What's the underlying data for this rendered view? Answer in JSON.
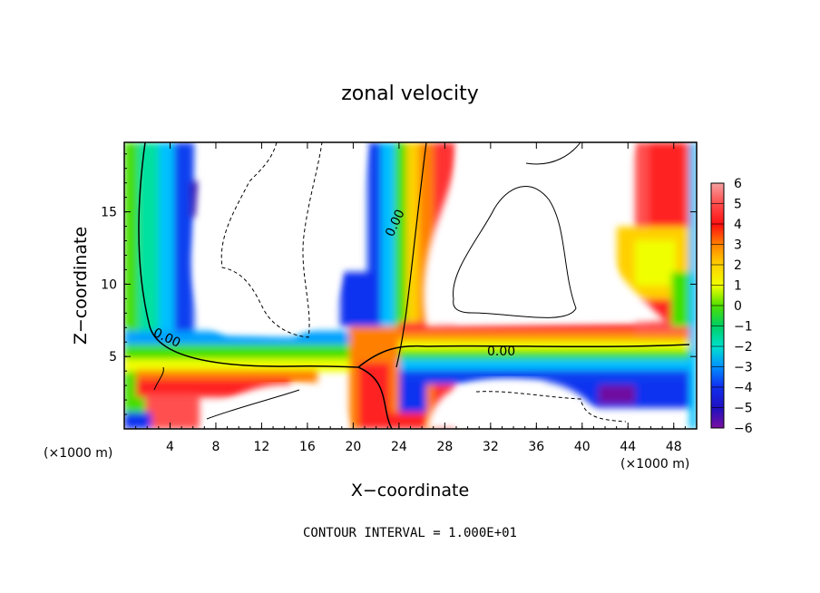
{
  "chart_data": {
    "type": "heatmap",
    "title": "zonal velocity",
    "xlabel": "X−coordinate",
    "ylabel": "Z−coordinate",
    "x_unit_left": "(×1000 m)",
    "x_unit_right": "(×1000 m)",
    "xlim": [
      0,
      50
    ],
    "ylim": [
      0,
      19.8
    ],
    "x_ticks": [
      "4",
      "8",
      "12",
      "16",
      "20",
      "24",
      "28",
      "32",
      "36",
      "40",
      "44",
      "48"
    ],
    "y_ticks": [
      "5",
      "10",
      "15"
    ],
    "colorbar": {
      "ticks": [
        "6",
        "5",
        "4",
        "3",
        "2",
        "1",
        "0",
        "−1",
        "−2",
        "−3",
        "−4",
        "−5",
        "−6"
      ],
      "range": [
        -6,
        6
      ]
    },
    "contour_labels": [
      "0.00",
      "0.00",
      "0.00"
    ],
    "note": "CONTOUR INTERVAL = 1.000E+01"
  }
}
